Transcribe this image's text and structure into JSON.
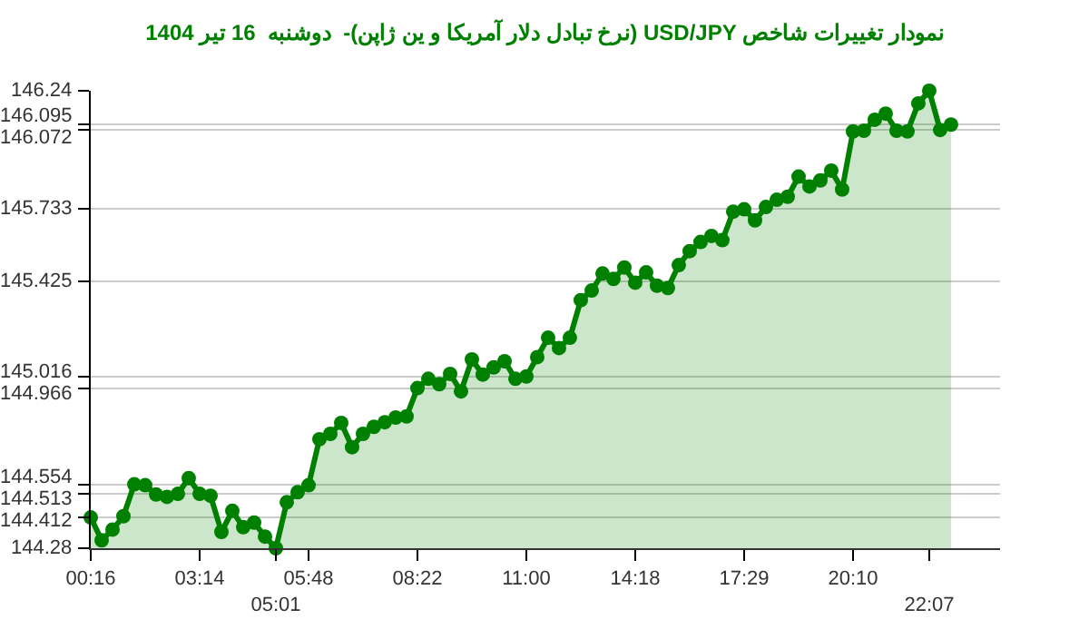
{
  "chart_data": {
    "type": "area",
    "title": "نمودار تغییرات شاخص USD/JPY (نرخ تبادل دلار آمریکا و ین ژاپن)-  دوشنبه  16 تیر 1404",
    "categories": [
      "00:16",
      null,
      null,
      null,
      null,
      null,
      null,
      null,
      null,
      null,
      "03:14",
      null,
      null,
      null,
      null,
      null,
      null,
      "05:01",
      null,
      null,
      "05:48",
      null,
      null,
      null,
      null,
      null,
      null,
      null,
      null,
      null,
      "08:22",
      null,
      null,
      null,
      null,
      null,
      null,
      null,
      null,
      null,
      "11:00",
      null,
      null,
      null,
      null,
      null,
      null,
      null,
      null,
      null,
      "14:18",
      null,
      null,
      null,
      null,
      null,
      null,
      null,
      null,
      null,
      "17:29",
      null,
      null,
      null,
      null,
      null,
      null,
      null,
      null,
      null,
      "20:10",
      null,
      null,
      null,
      null,
      null,
      null,
      "22:07",
      null,
      null
    ],
    "series": [
      {
        "color": "#008000",
        "values": [
          144.412,
          144.314,
          144.36,
          144.417,
          144.554,
          144.55,
          144.51,
          144.5,
          144.513,
          144.58,
          144.513,
          144.505,
          144.35,
          144.44,
          144.37,
          144.39,
          144.33,
          144.28,
          144.477,
          144.52,
          144.55,
          144.747,
          144.77,
          144.817,
          144.713,
          144.77,
          144.8,
          144.82,
          144.84,
          144.845,
          144.966,
          145.006,
          144.983,
          145.027,
          144.952,
          145.089,
          145.024,
          145.055,
          145.081,
          145.006,
          145.016,
          145.099,
          145.182,
          145.138,
          145.182,
          145.343,
          145.384,
          145.457,
          145.434,
          145.483,
          145.418,
          145.462,
          145.405,
          145.395,
          145.493,
          145.553,
          145.592,
          145.618,
          145.6,
          145.722,
          145.732,
          145.685,
          145.742,
          145.773,
          145.786,
          145.872,
          145.83,
          145.856,
          145.898,
          145.817,
          146.066,
          146.069,
          146.116,
          146.142,
          146.069,
          146.066,
          146.186,
          146.24,
          146.072,
          146.095
        ]
      }
    ],
    "ylim": [
      144.28,
      146.24
    ],
    "yticks": [
      144.28,
      144.412,
      144.513,
      144.554,
      144.966,
      145.016,
      145.425,
      145.733,
      146.072,
      146.095,
      146.24
    ],
    "grid": "y",
    "marker": "circle",
    "line_style": "solid"
  }
}
